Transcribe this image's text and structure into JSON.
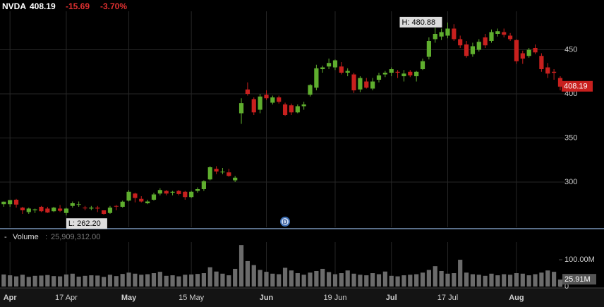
{
  "chart_data": {
    "type": "candlestick",
    "title": "NVDA",
    "last": "408.19",
    "change": -15.69,
    "change_pct": "-3.70%",
    "up_color": "#5fae2e",
    "down_color": "#c8201e",
    "grid": true,
    "ylim": [
      248.8,
      492
    ],
    "yticks": [
      300,
      350,
      400,
      450
    ],
    "xlim": [
      -0.6,
      96
    ],
    "xticks": [
      {
        "value": 1,
        "label": "Apr"
      },
      {
        "value": 10,
        "label": "17 Apr"
      },
      {
        "value": 20,
        "label": "May"
      },
      {
        "value": 30,
        "label": "15 May"
      },
      {
        "value": 42,
        "label": "Jun"
      },
      {
        "value": 53,
        "label": "19 Jun"
      },
      {
        "value": 62,
        "label": "Jul"
      },
      {
        "value": 71,
        "label": "17 Jul"
      },
      {
        "value": 82,
        "label": "Aug"
      }
    ],
    "high_label": "H: 480.88",
    "low_label": "L: 262.20",
    "dividend_marker": "D",
    "candles": [
      [
        275,
        278,
        272,
        277.8
      ],
      [
        275,
        279,
        272,
        279.6
      ],
      [
        280,
        281,
        271,
        274.5
      ],
      [
        271,
        272,
        264,
        268
      ],
      [
        266,
        271,
        264,
        270
      ],
      [
        268,
        270,
        265,
        269
      ],
      [
        272,
        273,
        266,
        267
      ],
      [
        270,
        272,
        265,
        265.5
      ],
      [
        267,
        272,
        266,
        271
      ],
      [
        270,
        274,
        266,
        267.5
      ],
      [
        265,
        271,
        262.2,
        270
      ],
      [
        273,
        278,
        271,
        276
      ],
      [
        275,
        278,
        272,
        275
      ],
      [
        271,
        273,
        268,
        270.5
      ],
      [
        270,
        273,
        268,
        271
      ],
      [
        271,
        273,
        266,
        270
      ],
      [
        268,
        268,
        263,
        264
      ],
      [
        265,
        273,
        264,
        271
      ],
      [
        273,
        274,
        268,
        272.5
      ],
      [
        272,
        279,
        271,
        277.8
      ],
      [
        279,
        291,
        278,
        289
      ],
      [
        287,
        288,
        277,
        282
      ],
      [
        281,
        284,
        277,
        278
      ],
      [
        276,
        280,
        275,
        278
      ],
      [
        280,
        288,
        279,
        286
      ],
      [
        287,
        293,
        285,
        291
      ],
      [
        290,
        291,
        285,
        287
      ],
      [
        288,
        290,
        285,
        289
      ],
      [
        290,
        291,
        285,
        286.5
      ],
      [
        289,
        290,
        280,
        283
      ],
      [
        283,
        290,
        282,
        289
      ],
      [
        290,
        294,
        288,
        292
      ],
      [
        292,
        302,
        290,
        301
      ],
      [
        303,
        318,
        302,
        316.8
      ],
      [
        315,
        318,
        309,
        312
      ],
      [
        311,
        316,
        309,
        311.8
      ],
      [
        311,
        315,
        306,
        307
      ],
      [
        302,
        307,
        300,
        305
      ],
      [
        378,
        395,
        366,
        389.5
      ],
      [
        405,
        413,
        398,
        400
      ],
      [
        394,
        396,
        376,
        379
      ],
      [
        382,
        400,
        378,
        397
      ],
      [
        399,
        404,
        393,
        395
      ],
      [
        390,
        398,
        388,
        396
      ],
      [
        396,
        398,
        389,
        391
      ],
      [
        388,
        390,
        375,
        376
      ],
      [
        387,
        389,
        376,
        379
      ],
      [
        379,
        388,
        378,
        386
      ],
      [
        386,
        391,
        382,
        388
      ],
      [
        399,
        411,
        397,
        410
      ],
      [
        407,
        433,
        404,
        429
      ],
      [
        428,
        432,
        424,
        430
      ],
      [
        431,
        440,
        428,
        435
      ],
      [
        430,
        439,
        427,
        438
      ],
      [
        431,
        436,
        422,
        424
      ],
      [
        424,
        429,
        420,
        426
      ],
      [
        422,
        424,
        401,
        404
      ],
      [
        405,
        420,
        402,
        418
      ],
      [
        414,
        418,
        406,
        407
      ],
      [
        406,
        418,
        404,
        414
      ],
      [
        416,
        424,
        413,
        421
      ],
      [
        422,
        426,
        419,
        424
      ],
      [
        424,
        430,
        420,
        428
      ],
      [
        425,
        427,
        418,
        424
      ],
      [
        420,
        427,
        414,
        423
      ],
      [
        425,
        427,
        419,
        421
      ],
      [
        420,
        426,
        414,
        425
      ],
      [
        428,
        440,
        427,
        437
      ],
      [
        442,
        464,
        439,
        460
      ],
      [
        462,
        475,
        458,
        468
      ],
      [
        465,
        474,
        461,
        470
      ],
      [
        466,
        480.88,
        463,
        474
      ],
      [
        474,
        479,
        460,
        462
      ],
      [
        462,
        466,
        452,
        455
      ],
      [
        456,
        460,
        441,
        443
      ],
      [
        445,
        458,
        442,
        454
      ],
      [
        450,
        462,
        448,
        459
      ],
      [
        464,
        468,
        452,
        455
      ],
      [
        460,
        473,
        458,
        470
      ],
      [
        468,
        474,
        465,
        471
      ],
      [
        470,
        474,
        464,
        467
      ],
      [
        466,
        469,
        460,
        462
      ],
      [
        461,
        462,
        434,
        437
      ],
      [
        446,
        449,
        434,
        440
      ],
      [
        443,
        452,
        441,
        450
      ],
      [
        452,
        456,
        445,
        447
      ],
      [
        443,
        446,
        425,
        428
      ],
      [
        430,
        435,
        418,
        423
      ],
      [
        425,
        428,
        416,
        423.88
      ],
      [
        418,
        420,
        404,
        408.19
      ]
    ],
    "volume": {
      "name": "Volume",
      "color": "#6b6b6b",
      "ylim": [
        0,
        166000000.0
      ],
      "yticks": [
        {
          "value": 0,
          "label": "0"
        },
        {
          "value": 100000000.0,
          "label": "100.00M"
        }
      ],
      "current": {
        "value": 25909312,
        "label": "25,909,312.00",
        "axis_label": "25.91M"
      },
      "values": [
        45000000.0,
        42000000.0,
        38000000.0,
        44000000.0,
        36000000.0,
        40000000.0,
        41000000.0,
        43000000.0,
        39000000.0,
        38000000.0,
        45000000.0,
        48000000.0,
        37000000.0,
        40000000.0,
        42000000.0,
        41000000.0,
        36000000.0,
        44000000.0,
        39000000.0,
        47000000.0,
        52000000.0,
        48000000.0,
        44000000.0,
        46000000.0,
        50000000.0,
        55000000.0,
        40000000.0,
        42000000.0,
        38000000.0,
        44000000.0,
        45000000.0,
        47000000.0,
        50000000.0,
        72000000.0,
        56000000.0,
        48000000.0,
        42000000.0,
        66000000.0,
        155000000.0,
        95000000.0,
        80000000.0,
        62000000.0,
        55000000.0,
        48000000.0,
        46000000.0,
        70000000.0,
        60000000.0,
        50000000.0,
        44000000.0,
        52000000.0,
        58000000.0,
        66000000.0,
        54000000.0,
        46000000.0,
        50000000.0,
        60000000.0,
        48000000.0,
        44000000.0,
        42000000.0,
        50000000.0,
        46000000.0,
        56000000.0,
        40000000.0,
        38000000.0,
        42000000.0,
        44000000.0,
        46000000.0,
        52000000.0,
        62000000.0,
        76000000.0,
        58000000.0,
        48000000.0,
        50000000.0,
        100000000.0,
        52000000.0,
        46000000.0,
        44000000.0,
        40000000.0,
        48000000.0,
        42000000.0,
        46000000.0,
        44000000.0,
        50000000.0,
        48000000.0,
        42000000.0,
        46000000.0,
        52000000.0,
        60000000.0,
        55000000.0,
        25909312
      ]
    }
  }
}
